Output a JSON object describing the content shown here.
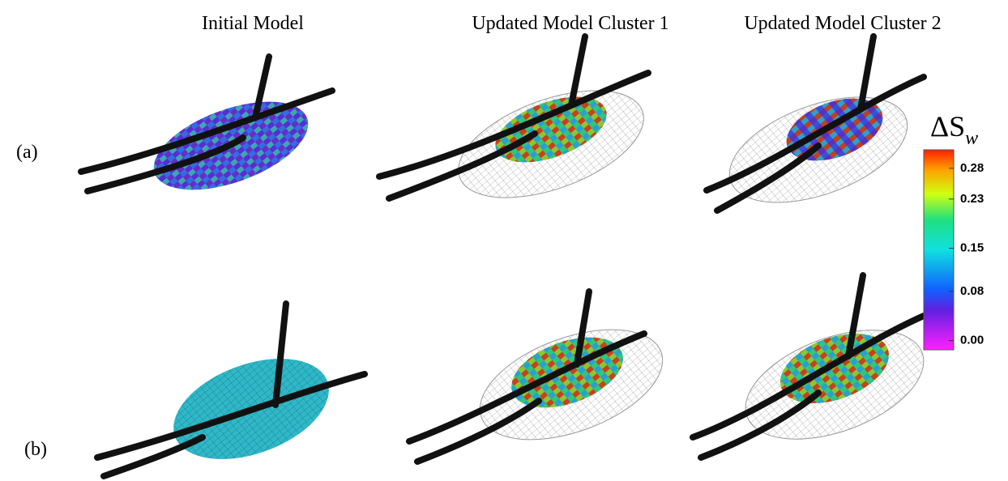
{
  "columns": [
    "Initial Model",
    "Updated Model Cluster 1",
    "Updated Model Cluster 2"
  ],
  "rows": [
    "(a)",
    "(b)"
  ],
  "colorbar": {
    "symbol": "ΔS",
    "subscript": "w",
    "lim": [
      -0.015,
      0.31
    ],
    "ticks": [
      {
        "value": 0,
        "label": "0.00"
      },
      0.08,
      0.15,
      0.23,
      0.28
    ]
  }
}
